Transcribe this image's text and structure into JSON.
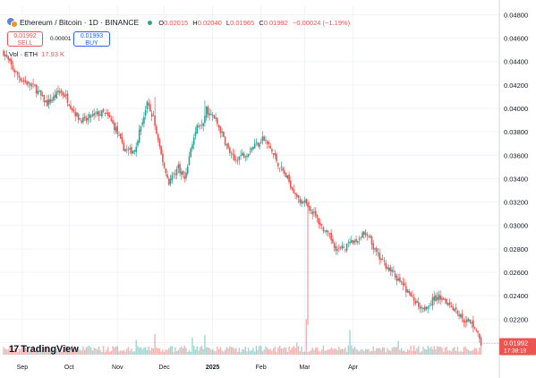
{
  "header": {
    "symbol_title": "Ethereum / Bitcoin · 1D · BINANCE",
    "ohlc": [
      {
        "label": "O",
        "value": "0.02015"
      },
      {
        "label": "H",
        "value": "0.02040"
      },
      {
        "label": "L",
        "value": "0.01965"
      },
      {
        "label": "C",
        "value": "0.01992"
      }
    ],
    "change": "−0.00024 (−1.19%)"
  },
  "trade": {
    "sell_price": "0.01992",
    "sell_label": "SELL",
    "spread": "0.00001",
    "buy_price": "0.01993",
    "buy_label": "BUY"
  },
  "volume_legend": {
    "label": "Vol · ETH",
    "value": "17.93 K"
  },
  "branding": {
    "logo_text": "TradingView",
    "logo_mark": "17"
  },
  "price_tag": {
    "value": "0.01992",
    "countdown": "17:38:19"
  },
  "colors": {
    "up": "#26a69a",
    "down": "#ef5350",
    "grid": "#f0f3fa",
    "axis_text": "#131722"
  },
  "chart_data": {
    "type": "candlestick",
    "timeframe": "1D",
    "y_axis_ticks": [
      "0.04800",
      "0.04600",
      "0.04400",
      "0.04200",
      "0.04000",
      "0.03800",
      "0.03600",
      "0.03400",
      "0.03200",
      "0.03000",
      "0.02800",
      "0.02600",
      "0.02400",
      "0.02200",
      "0.02000"
    ],
    "ylim": [
      0.0185,
      0.0488
    ],
    "x_axis_labels": [
      "Sep",
      "Oct",
      "Nov",
      "Dec",
      "2025",
      "Feb",
      "Mar",
      "Apr"
    ],
    "close_path": [
      [
        0,
        0.0448
      ],
      [
        4,
        0.0438
      ],
      [
        8,
        0.043
      ],
      [
        12,
        0.0424
      ],
      [
        16,
        0.0421
      ],
      [
        20,
        0.0418
      ],
      [
        24,
        0.041
      ],
      [
        28,
        0.0404
      ],
      [
        32,
        0.0409
      ],
      [
        36,
        0.0415
      ],
      [
        40,
        0.041
      ],
      [
        44,
        0.04
      ],
      [
        48,
        0.0392
      ],
      [
        52,
        0.0389
      ],
      [
        56,
        0.0393
      ],
      [
        60,
        0.0395
      ],
      [
        64,
        0.0396
      ],
      [
        68,
        0.0391
      ],
      [
        72,
        0.0382
      ],
      [
        76,
        0.0368
      ],
      [
        80,
        0.0363
      ],
      [
        84,
        0.0365
      ],
      [
        88,
        0.0385
      ],
      [
        92,
        0.0403
      ],
      [
        96,
        0.0392
      ],
      [
        100,
        0.0365
      ],
      [
        104,
        0.0345
      ],
      [
        106,
        0.0337
      ],
      [
        108,
        0.0342
      ],
      [
        112,
        0.035
      ],
      [
        116,
        0.034
      ],
      [
        120,
        0.0365
      ],
      [
        124,
        0.0385
      ],
      [
        128,
        0.039
      ],
      [
        130,
        0.04
      ],
      [
        132,
        0.0395
      ],
      [
        136,
        0.039
      ],
      [
        140,
        0.0378
      ],
      [
        144,
        0.0365
      ],
      [
        148,
        0.0355
      ],
      [
        152,
        0.036
      ],
      [
        156,
        0.0362
      ],
      [
        160,
        0.0368
      ],
      [
        164,
        0.0372
      ],
      [
        166,
        0.0375
      ],
      [
        170,
        0.0368
      ],
      [
        174,
        0.0358
      ],
      [
        178,
        0.0348
      ],
      [
        182,
        0.034
      ],
      [
        186,
        0.033
      ],
      [
        190,
        0.0322
      ],
      [
        194,
        0.0318
      ],
      [
        198,
        0.0312
      ],
      [
        202,
        0.0303
      ],
      [
        206,
        0.0295
      ],
      [
        210,
        0.0288
      ],
      [
        214,
        0.0279
      ],
      [
        218,
        0.0281
      ],
      [
        222,
        0.0284
      ],
      [
        226,
        0.0286
      ],
      [
        230,
        0.0293
      ],
      [
        234,
        0.029
      ],
      [
        238,
        0.0278
      ],
      [
        242,
        0.027
      ],
      [
        246,
        0.0265
      ],
      [
        250,
        0.0258
      ],
      [
        254,
        0.0252
      ],
      [
        258,
        0.0245
      ],
      [
        262,
        0.0238
      ],
      [
        266,
        0.0232
      ],
      [
        270,
        0.023
      ],
      [
        274,
        0.0235
      ],
      [
        278,
        0.0239
      ],
      [
        282,
        0.0238
      ],
      [
        286,
        0.0233
      ],
      [
        290,
        0.0228
      ],
      [
        294,
        0.022
      ],
      [
        298,
        0.0218
      ],
      [
        302,
        0.0214
      ],
      [
        306,
        0.0199
      ]
    ],
    "wick_spikes": [
      {
        "day": 97,
        "high": 0.041
      },
      {
        "day": 129,
        "high": 0.0407
      },
      {
        "day": 195,
        "low": 0.0215
      },
      {
        "day": 189,
        "high": 0.0325
      }
    ],
    "volume_spikes": [
      {
        "day": 97,
        "rel": 0.42
      },
      {
        "day": 129,
        "rel": 0.4
      },
      {
        "day": 121,
        "rel": 0.35
      },
      {
        "day": 194,
        "rel": 0.72
      },
      {
        "day": 222,
        "rel": 0.5
      },
      {
        "day": 85,
        "rel": 0.3
      },
      {
        "day": 253,
        "rel": 0.28
      },
      {
        "day": 188,
        "rel": 0.25
      }
    ],
    "volume_label": "Vol · ETH",
    "last_price": 0.01992
  }
}
